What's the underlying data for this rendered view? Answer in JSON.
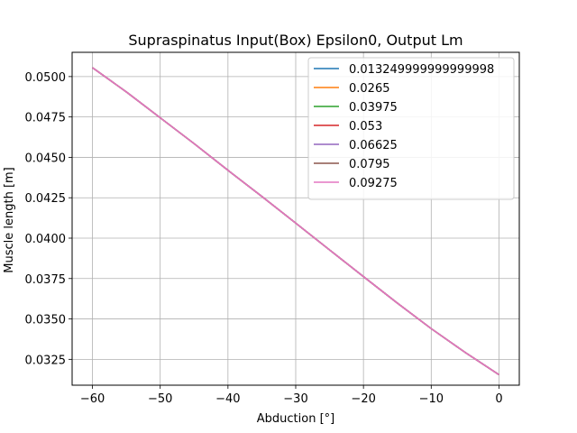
{
  "chart_data": {
    "type": "line",
    "title": "Supraspinatus Input(Box) Epsilon0, Output Lm",
    "xlabel": "Abduction [°]",
    "ylabel": "Muscle length [m]",
    "xlim": [
      -63,
      3
    ],
    "ylim": [
      0.0309,
      0.0515
    ],
    "grid": true,
    "legend_position": "top-right",
    "x_ticks": [
      "−60",
      "−50",
      "−40",
      "−30",
      "−20",
      "−10",
      "0"
    ],
    "x_tick_values": [
      -60,
      -50,
      -40,
      -30,
      -20,
      -10,
      0
    ],
    "y_ticks": [
      "0.0325",
      "0.0350",
      "0.0375",
      "0.0400",
      "0.0425",
      "0.0450",
      "0.0475",
      "0.0500"
    ],
    "y_tick_values": [
      0.0325,
      0.035,
      0.0375,
      0.04,
      0.0425,
      0.045,
      0.0475,
      0.05
    ],
    "x": [
      -60,
      -55,
      -50,
      -45,
      -40,
      -35,
      -30,
      -25,
      -20,
      -15,
      -10,
      -5,
      0
    ],
    "series": [
      {
        "name": "0.013249999999999998",
        "color": "#1f77b4",
        "values": [
          0.05055,
          0.04905,
          0.04745,
          0.04585,
          0.0442,
          0.04258,
          0.04093,
          0.03927,
          0.03762,
          0.03598,
          0.0344,
          0.03293,
          0.03155
        ]
      },
      {
        "name": "0.0265",
        "color": "#ff7f0e",
        "values": [
          0.05055,
          0.04905,
          0.04745,
          0.04585,
          0.0442,
          0.04258,
          0.04093,
          0.03927,
          0.03762,
          0.03598,
          0.0344,
          0.03293,
          0.03155
        ]
      },
      {
        "name": "0.03975",
        "color": "#2ca02c",
        "values": [
          0.05055,
          0.04905,
          0.04745,
          0.04585,
          0.0442,
          0.04258,
          0.04093,
          0.03927,
          0.03762,
          0.03598,
          0.0344,
          0.03293,
          0.03155
        ]
      },
      {
        "name": "0.053",
        "color": "#d62728",
        "values": [
          0.05055,
          0.04905,
          0.04745,
          0.04585,
          0.0442,
          0.04258,
          0.04093,
          0.03927,
          0.03762,
          0.03598,
          0.0344,
          0.03293,
          0.03155
        ]
      },
      {
        "name": "0.06625",
        "color": "#9467bd",
        "values": [
          0.05055,
          0.04905,
          0.04745,
          0.04585,
          0.0442,
          0.04258,
          0.04093,
          0.03927,
          0.03762,
          0.03598,
          0.0344,
          0.03293,
          0.03155
        ]
      },
      {
        "name": "0.0795",
        "color": "#8c564b",
        "values": [
          0.05055,
          0.04905,
          0.04745,
          0.04585,
          0.0442,
          0.04258,
          0.04093,
          0.03927,
          0.03762,
          0.03598,
          0.0344,
          0.03293,
          0.03155
        ]
      },
      {
        "name": "0.09275",
        "color": "#e377c2",
        "values": [
          0.05055,
          0.04905,
          0.04745,
          0.04585,
          0.0442,
          0.04258,
          0.04093,
          0.03927,
          0.03762,
          0.03598,
          0.0344,
          0.03293,
          0.03155
        ]
      }
    ]
  }
}
